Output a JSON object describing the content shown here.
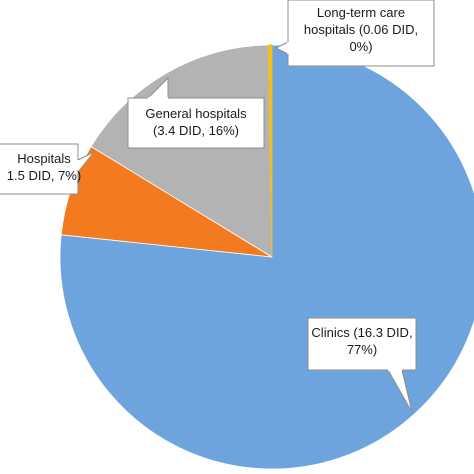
{
  "chart_data": {
    "type": "pie",
    "slices": [
      {
        "label_lines": [
          "Clinics (16.3 DID,",
          "77%)"
        ],
        "value": 16.3,
        "percent": 77,
        "color": "#6ea4dd"
      },
      {
        "label_lines": [
          "Hospitals",
          "1.5 DID, 7%)"
        ],
        "value": 1.5,
        "percent": 7,
        "color": "#f47a1f"
      },
      {
        "label_lines": [
          "General hospitals",
          "(3.4 DID, 16%)"
        ],
        "value": 3.4,
        "percent": 16,
        "color": "#b3b3b3"
      },
      {
        "label_lines": [
          "Long-term care",
          "hospitals (0.06 DID,",
          "0%)"
        ],
        "value": 0.06,
        "percent": 0,
        "color": "#f2bd1d"
      }
    ]
  }
}
